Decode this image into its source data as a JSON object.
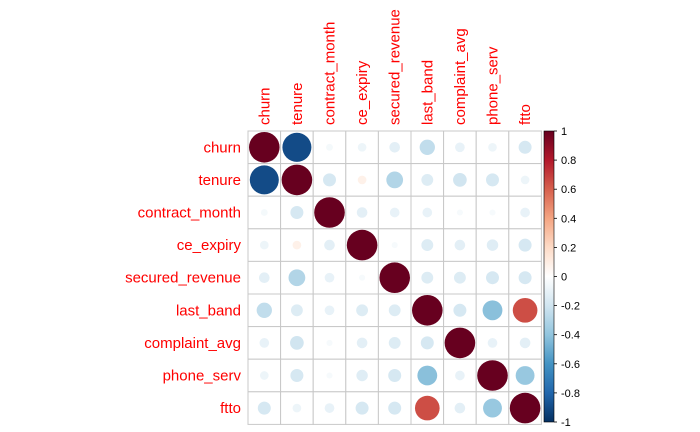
{
  "chart_data": {
    "type": "heatmap",
    "title": "",
    "variables": [
      "churn",
      "tenure",
      "contract_month",
      "ce_expiry",
      "secured_revenue",
      "last_band",
      "complaint_avg",
      "phone_serv",
      "ftto"
    ],
    "matrix": [
      [
        1.0,
        -0.9,
        -0.05,
        -0.08,
        -0.12,
        -0.25,
        -0.1,
        -0.08,
        -0.18
      ],
      [
        -0.9,
        1.0,
        -0.18,
        0.08,
        -0.3,
        -0.15,
        -0.2,
        -0.18,
        -0.08
      ],
      [
        -0.05,
        -0.18,
        1.0,
        -0.12,
        -0.1,
        -0.1,
        -0.04,
        -0.04,
        -0.1
      ],
      [
        -0.08,
        0.08,
        -0.12,
        1.0,
        -0.04,
        -0.15,
        -0.12,
        -0.14,
        -0.18
      ],
      [
        -0.12,
        -0.3,
        -0.1,
        -0.04,
        1.0,
        -0.15,
        -0.15,
        -0.18,
        -0.18
      ],
      [
        -0.25,
        -0.15,
        -0.1,
        -0.15,
        -0.15,
        1.0,
        -0.18,
        -0.42,
        0.65
      ],
      [
        -0.1,
        -0.2,
        -0.04,
        -0.12,
        -0.15,
        -0.18,
        1.0,
        -0.1,
        -0.12
      ],
      [
        -0.08,
        -0.18,
        -0.04,
        -0.14,
        -0.18,
        -0.42,
        -0.1,
        1.0,
        -0.38
      ],
      [
        -0.18,
        -0.08,
        -0.1,
        -0.18,
        -0.18,
        0.65,
        -0.12,
        -0.38,
        1.0
      ]
    ],
    "color_scale": {
      "range": [
        -1,
        1
      ],
      "ticks": [
        "1",
        "0.8",
        "0.6",
        "0.4",
        "0.2",
        "0",
        "-0.2",
        "-0.4",
        "-0.6",
        "-0.8",
        "-1"
      ],
      "colors": [
        "#67001F",
        "#B2182B",
        "#D6604D",
        "#F4A582",
        "#FDDBC7",
        "#FFFFFF",
        "#D1E5F0",
        "#92C5DE",
        "#4393C3",
        "#2166AC",
        "#053061"
      ],
      "legend_position": "right"
    },
    "label_color": "#ff0000",
    "grid": true
  }
}
